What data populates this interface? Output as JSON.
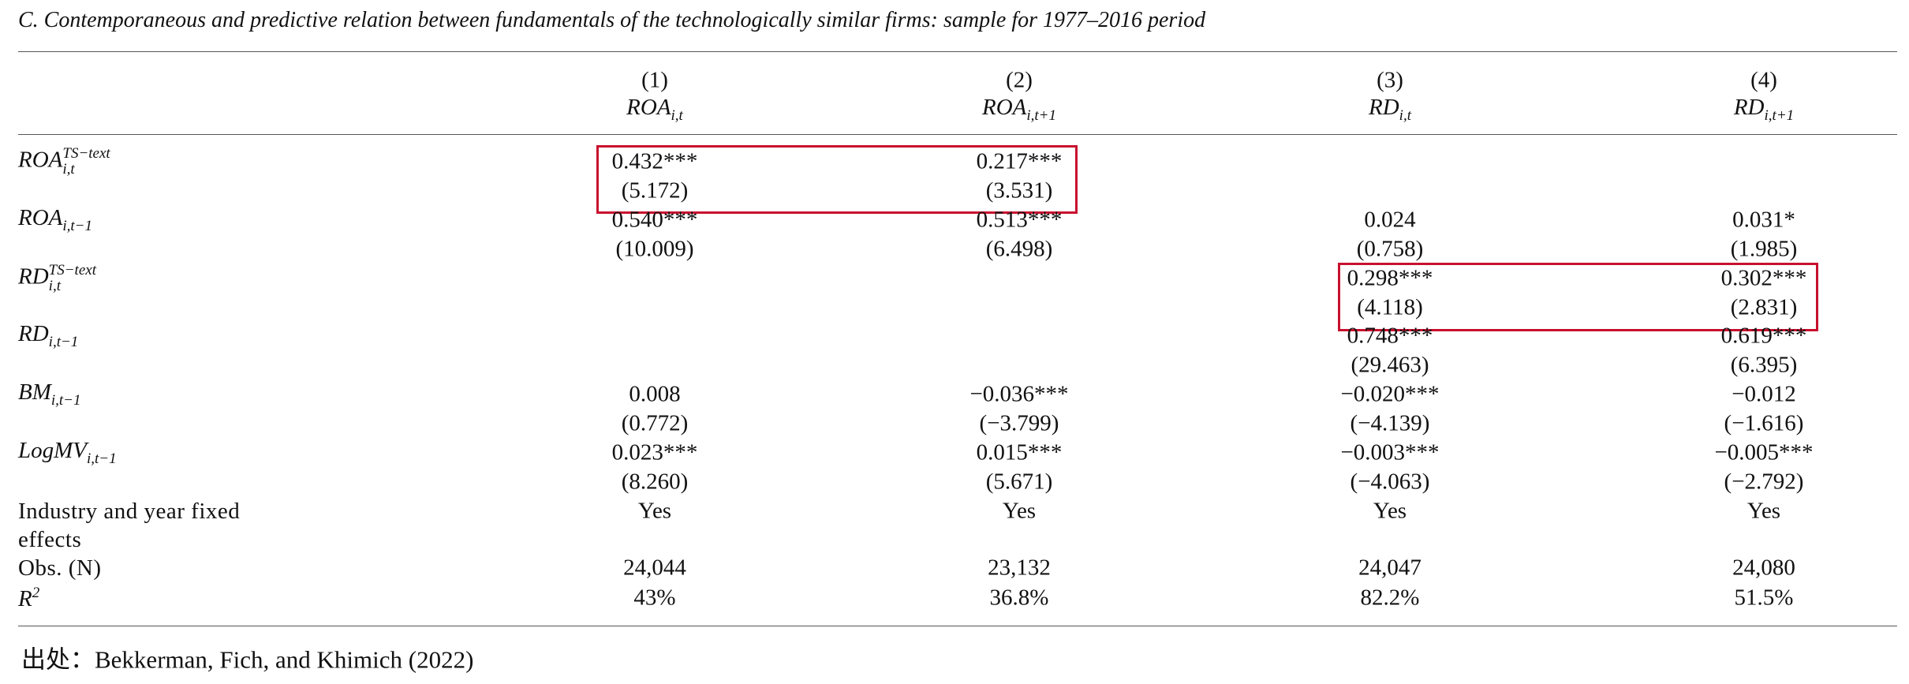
{
  "title": "C. Contemporaneous and predictive relation between fundamentals of the technologically similar firms: sample for 1977–2016 period",
  "columns": [
    {
      "number": "(1)",
      "base": "ROA",
      "sub": "i,t"
    },
    {
      "number": "(2)",
      "base": "ROA",
      "sub": "i,t+1"
    },
    {
      "number": "(3)",
      "base": "RD",
      "sub": "i,t"
    },
    {
      "number": "(4)",
      "base": "RD",
      "sub": "i,t+1"
    }
  ],
  "rows": [
    {
      "label": {
        "base": "ROA",
        "sub": "i,t",
        "sup": "TS−text"
      },
      "cells": [
        {
          "coef": "0.432***",
          "t": "(5.172)"
        },
        {
          "coef": "0.217***",
          "t": "(3.531)"
        },
        null,
        null
      ]
    },
    {
      "label": {
        "base": "ROA",
        "sub": "i,t−1"
      },
      "cells": [
        {
          "coef": "0.540***",
          "t": "(10.009)"
        },
        {
          "coef": "0.513***",
          "t": "(6.498)"
        },
        {
          "coef": "0.024",
          "t": "(0.758)"
        },
        {
          "coef": "0.031*",
          "t": "(1.985)"
        }
      ]
    },
    {
      "label": {
        "base": "RD",
        "sub": "i,t",
        "sup": "TS−text"
      },
      "cells": [
        null,
        null,
        {
          "coef": "0.298***",
          "t": "(4.118)"
        },
        {
          "coef": "0.302***",
          "t": "(2.831)"
        }
      ]
    },
    {
      "label": {
        "base": "RD",
        "sub": "i,t−1"
      },
      "cells": [
        null,
        null,
        {
          "coef": "0.748***",
          "t": "(29.463)"
        },
        {
          "coef": "0.619***",
          "t": "(6.395)"
        }
      ]
    },
    {
      "label": {
        "base": "BM",
        "sub": "i,t−1"
      },
      "cells": [
        {
          "coef": "0.008",
          "t": "(0.772)"
        },
        {
          "coef": "−0.036***",
          "t": "(−3.799)"
        },
        {
          "coef": "−0.020***",
          "t": "(−4.139)"
        },
        {
          "coef": "−0.012",
          "t": "(−1.616)"
        }
      ]
    },
    {
      "label": {
        "base": "LogMV",
        "sub": "i,t−1"
      },
      "cells": [
        {
          "coef": "0.023***",
          "t": "(8.260)"
        },
        {
          "coef": "0.015***",
          "t": "(5.671)"
        },
        {
          "coef": "−0.003***",
          "t": "(−4.063)"
        },
        {
          "coef": "−0.005***",
          "t": "(−2.792)"
        }
      ]
    }
  ],
  "footer_rows": [
    {
      "label": "Industry and year fixed effects",
      "cells": [
        "Yes",
        "Yes",
        "Yes",
        "Yes"
      ]
    },
    {
      "label": "Obs. (N)",
      "cells": [
        "24,044",
        "23,132",
        "24,047",
        "24,080"
      ]
    },
    {
      "label": {
        "base": "R",
        "sup": "2"
      },
      "cells": [
        "43%",
        "36.8%",
        "82.2%",
        "51.5%"
      ]
    }
  ],
  "source": "出处：Bekkerman, Fich, and Khimich (2022)"
}
